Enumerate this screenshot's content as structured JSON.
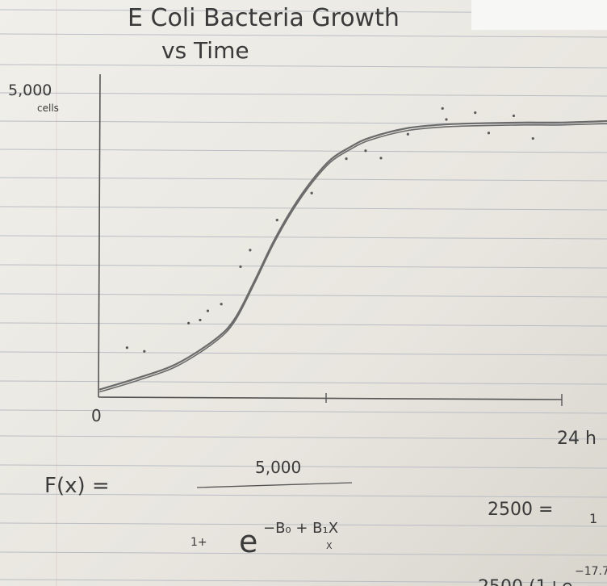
{
  "chart_data": {
    "type": "line",
    "title": "E Coli Bacteria Growth",
    "subtitle": "vs Time",
    "ylabel": "5,000 cells",
    "y_top_label": "5,000",
    "y_unit_label": "cells",
    "x_origin_label": "0",
    "x_end_label": "24 h",
    "xlim": [
      0,
      24
    ],
    "ylim": [
      0,
      5000
    ],
    "grid": false,
    "series": [
      {
        "curve": "logistic",
        "x": [
          0,
          2,
          4,
          6,
          7,
          8,
          9,
          10,
          11,
          12,
          13,
          14,
          16,
          18,
          20,
          22,
          24
        ],
        "y": [
          100,
          290,
          520,
          920,
          1250,
          1850,
          2500,
          3050,
          3500,
          3850,
          4050,
          4200,
          4360,
          4420,
          4440,
          4450,
          4450
        ]
      }
    ],
    "points": [
      {
        "x": 1.4,
        "y": 780
      },
      {
        "x": 2.3,
        "y": 720
      },
      {
        "x": 4.6,
        "y": 1180
      },
      {
        "x": 5.2,
        "y": 1230
      },
      {
        "x": 5.6,
        "y": 1380
      },
      {
        "x": 6.3,
        "y": 1490
      },
      {
        "x": 7.3,
        "y": 2100
      },
      {
        "x": 7.8,
        "y": 2370
      },
      {
        "x": 9.2,
        "y": 2860
      },
      {
        "x": 11.0,
        "y": 3300
      },
      {
        "x": 12.8,
        "y": 3860
      },
      {
        "x": 13.8,
        "y": 3990
      },
      {
        "x": 14.6,
        "y": 3870
      },
      {
        "x": 16.0,
        "y": 4260
      },
      {
        "x": 17.8,
        "y": 4680
      },
      {
        "x": 18.0,
        "y": 4500
      },
      {
        "x": 19.5,
        "y": 4610
      },
      {
        "x": 20.2,
        "y": 4280
      },
      {
        "x": 21.5,
        "y": 4560
      },
      {
        "x": 22.5,
        "y": 4190
      }
    ]
  },
  "formula": {
    "lhs": "F(x) =",
    "numerator": "5,000",
    "denominator_prefix": "1+",
    "base": "e",
    "exponent": "−B₀ + B₁X",
    "sub_note": "X",
    "right_eq": "2500 =",
    "right_tail": "1",
    "bottom_fragment": "2500 (1+e",
    "bottom_exponent": "−17.7"
  },
  "colors": {
    "paper": "#eceae4",
    "rule_line": "#b9bdc4",
    "margin_line": "#cfa8ad",
    "pencil": "#5a5a5a",
    "curve": "#6b6b6b"
  }
}
